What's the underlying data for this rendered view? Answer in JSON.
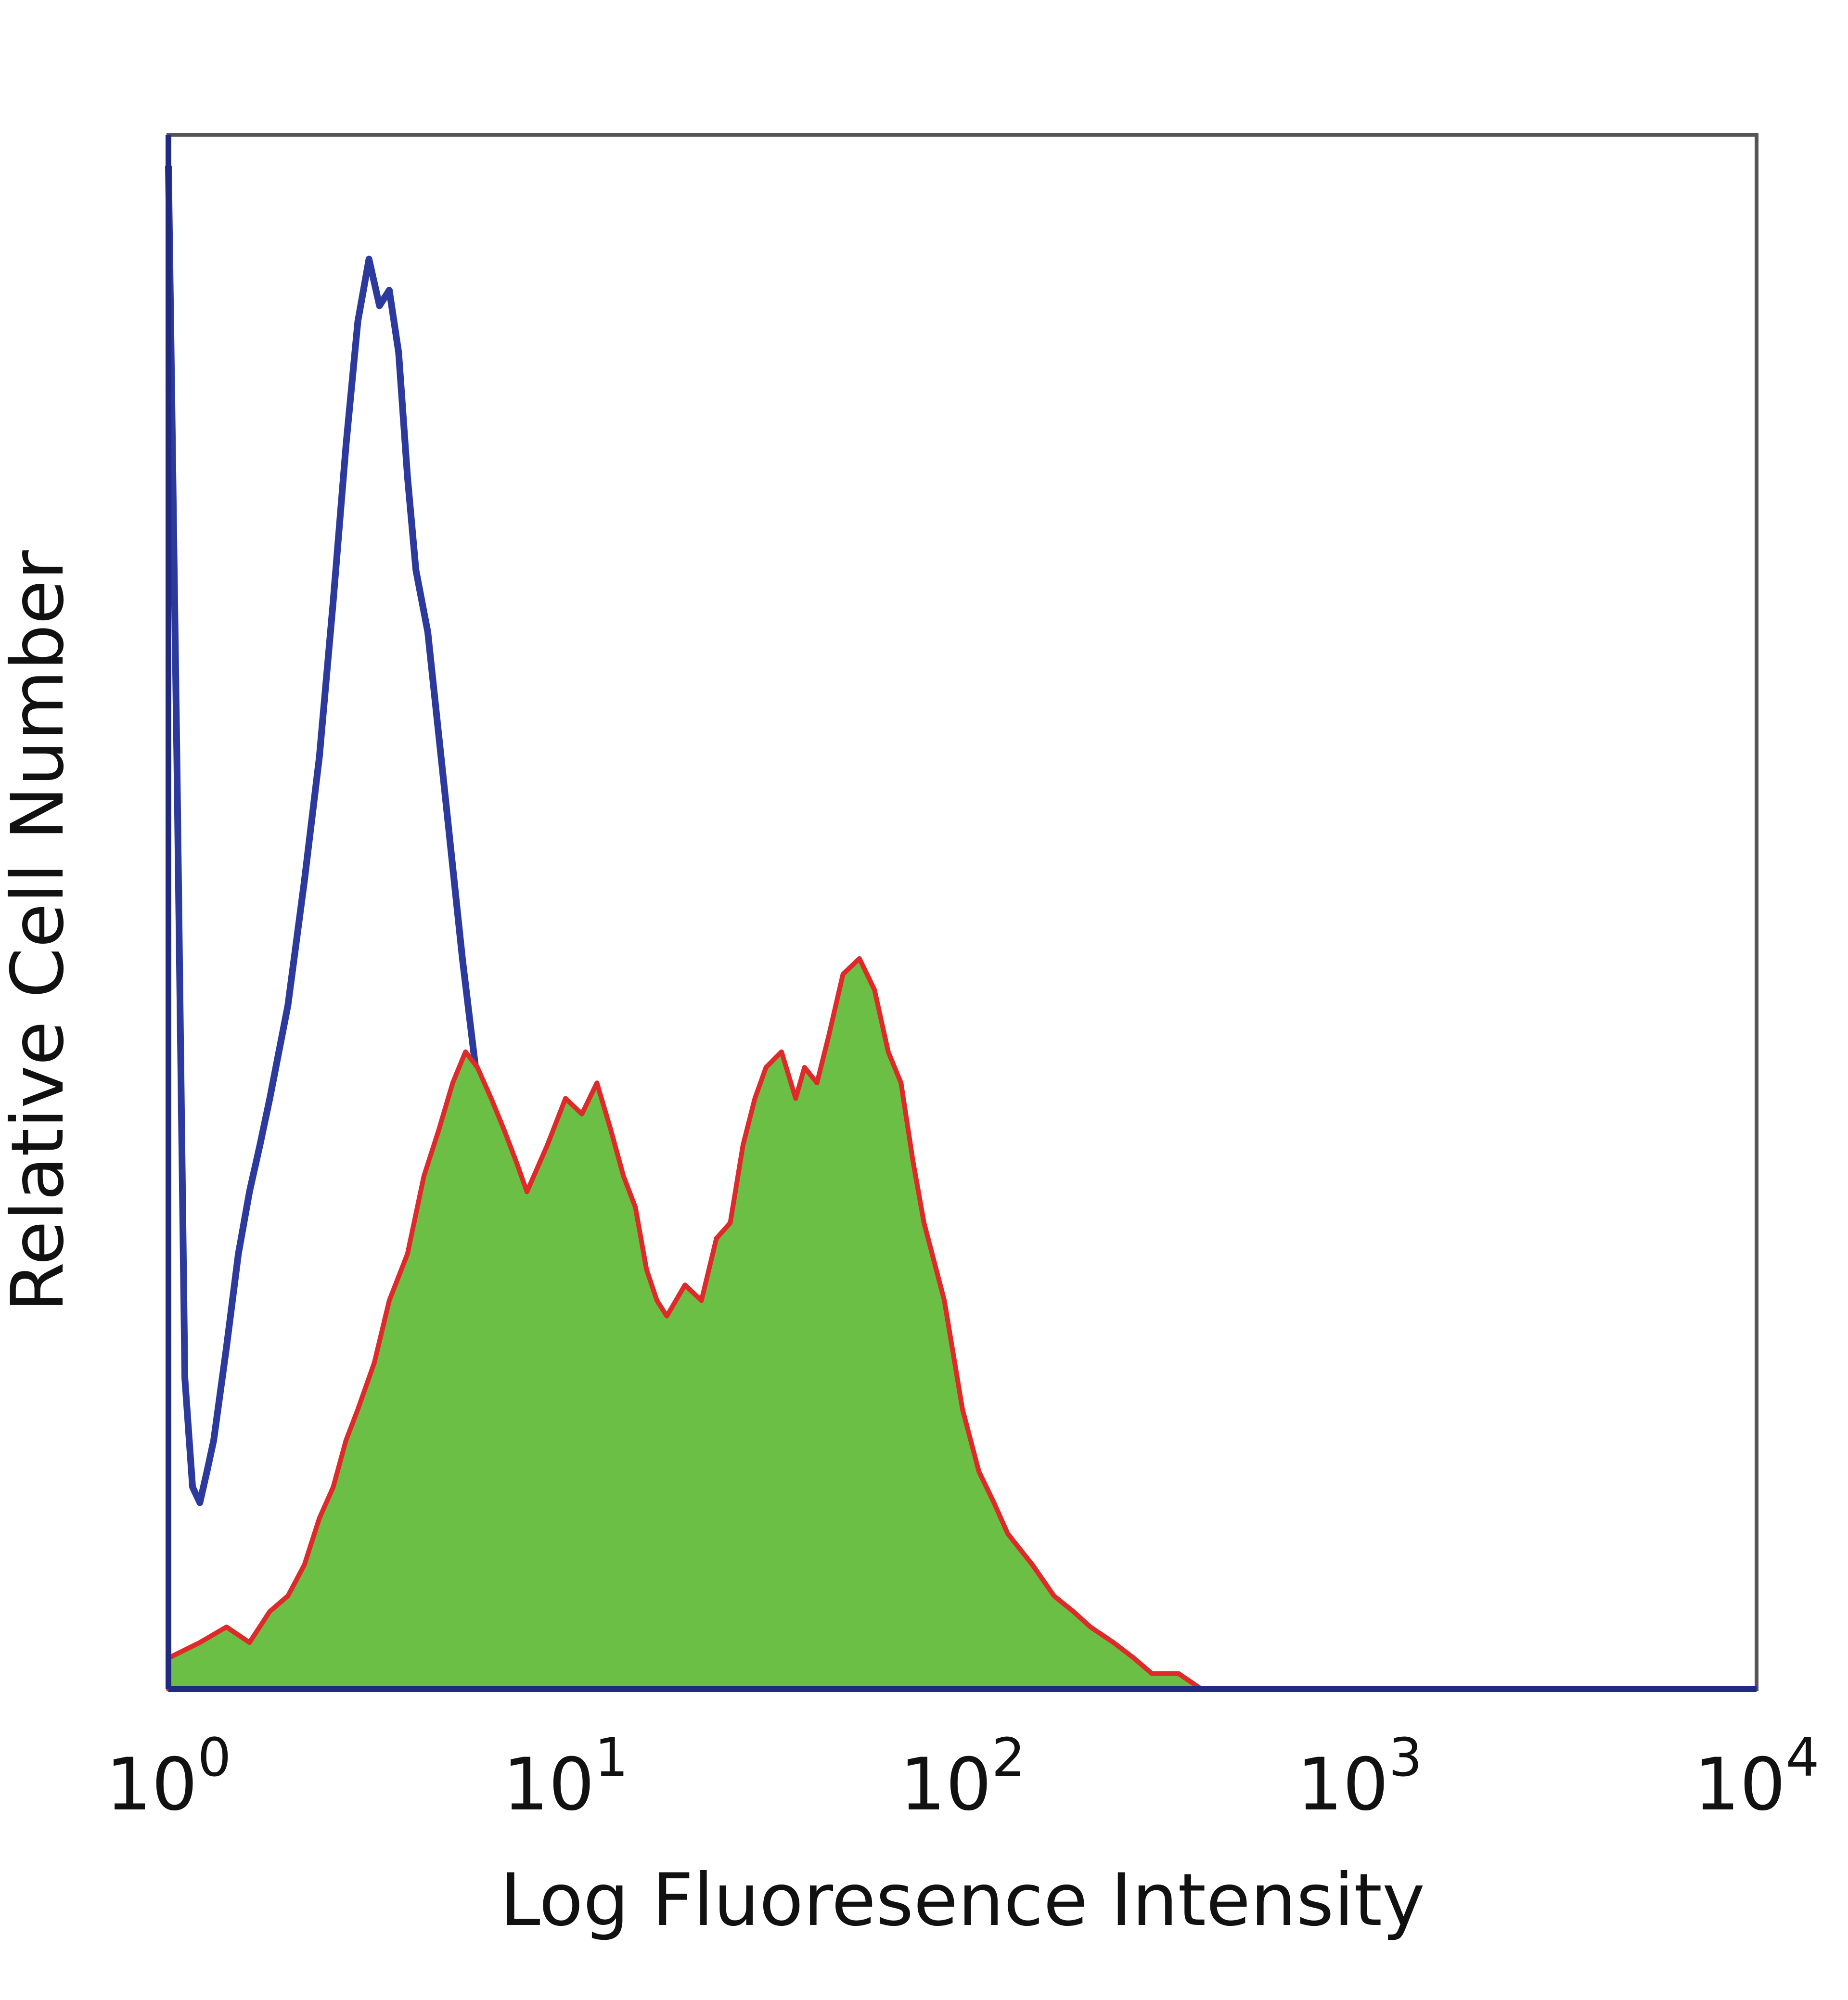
{
  "chart_data": {
    "type": "area",
    "title": "",
    "xlabel": "Log Fluoresence Intensity",
    "ylabel": "Relative Cell Number",
    "x_scale": "log",
    "xlim": [
      1,
      10000
    ],
    "ylim": [
      0,
      100
    ],
    "grid": false,
    "legend": "none",
    "x_ticks": [
      {
        "value": 1,
        "base": "10",
        "exp": "0"
      },
      {
        "value": 10,
        "base": "10",
        "exp": "1"
      },
      {
        "value": 100,
        "base": "10",
        "exp": "2"
      },
      {
        "value": 1000,
        "base": "10",
        "exp": "3"
      },
      {
        "value": 10000,
        "base": "10",
        "exp": "4"
      }
    ],
    "series": [
      {
        "style": "line",
        "color": "#2b3a9c",
        "x": [
          1.0,
          1.05,
          1.1,
          1.15,
          1.2,
          1.25,
          1.3,
          1.4,
          1.5,
          1.6,
          1.7,
          1.8,
          2.0,
          2.2,
          2.4,
          2.6,
          2.8,
          3.0,
          3.2,
          3.4,
          3.6,
          3.8,
          4.0,
          4.2,
          4.5,
          5.0,
          5.5,
          6.0,
          6.5,
          7.0,
          7.5,
          8.0,
          9.0,
          10.0,
          11.0,
          12.0,
          13.0
        ],
        "y": [
          98,
          60,
          20,
          13,
          12,
          14,
          16,
          22,
          28,
          32,
          35,
          38,
          44,
          52,
          60,
          70,
          80,
          88,
          92,
          89,
          90,
          86,
          78,
          72,
          68,
          57,
          47,
          39,
          30,
          23,
          18,
          14,
          8,
          3,
          2,
          1,
          0
        ]
      },
      {
        "style": "fill",
        "color": "#6cbf45",
        "edge_color": "#e02a2a",
        "x": [
          1.0,
          1.2,
          1.4,
          1.6,
          1.8,
          2.0,
          2.2,
          2.4,
          2.6,
          2.8,
          3.0,
          3.3,
          3.6,
          4.0,
          4.4,
          4.8,
          5.2,
          5.6,
          6.0,
          6.5,
          7.0,
          7.5,
          8.0,
          9.0,
          10.0,
          11.0,
          12.0,
          13.0,
          14.0,
          15.0,
          16.0,
          17.0,
          18.0,
          20.0,
          22.0,
          24.0,
          26.0,
          28.0,
          30.0,
          32.0,
          35.0,
          38.0,
          40.0,
          43.0,
          46.0,
          50.0,
          55.0,
          60.0,
          65.0,
          70.0,
          75.0,
          80.0,
          90.0,
          100.0,
          110.0,
          120.0,
          130.0,
          150.0,
          170.0,
          190.0,
          210.0,
          240.0,
          270.0,
          300.0,
          350.0,
          400.0
        ],
        "y": [
          2,
          3,
          4,
          3,
          5,
          6,
          8,
          11,
          13,
          16,
          18,
          21,
          25,
          28,
          33,
          36,
          39,
          41,
          40,
          38,
          36,
          34,
          32,
          35,
          38,
          37,
          39,
          36,
          33,
          31,
          27,
          25,
          24,
          26,
          25,
          29,
          30,
          35,
          38,
          40,
          41,
          38,
          40,
          39,
          42,
          46,
          47,
          45,
          41,
          39,
          34,
          30,
          25,
          18,
          14,
          12,
          10,
          8,
          6,
          5,
          4,
          3,
          2,
          1,
          1,
          0
        ]
      }
    ]
  }
}
